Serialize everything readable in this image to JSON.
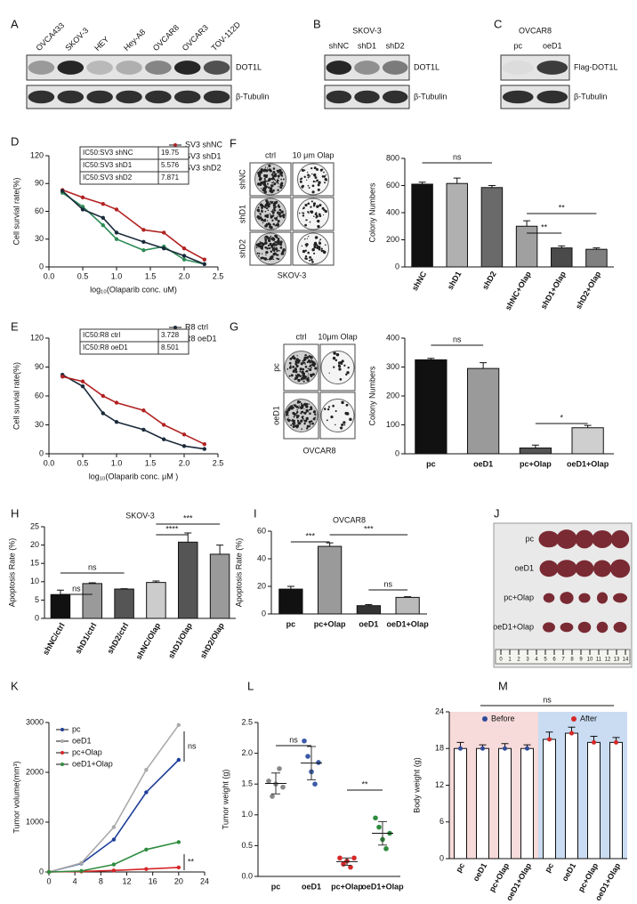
{
  "blots": [
    {
      "panel": "A",
      "lanes": [
        "OVCA433",
        "SKOV-3",
        "HEY",
        "Hey-A8",
        "OVCAR8",
        "OVCAR3",
        "TOV-112D"
      ],
      "bands": [
        "DOT1L",
        "β-Tubulin"
      ]
    },
    {
      "panel": "B",
      "title": "SKOV-3",
      "lanes": [
        "shNC",
        "shD1",
        "shD2"
      ],
      "bands": [
        "DOT1L",
        "β-Tubulin"
      ]
    },
    {
      "panel": "C",
      "title": "OVCAR8",
      "lanes": [
        "pc",
        "oeD1"
      ],
      "bands": [
        "Flag-DOT1L",
        "β-Tubulin"
      ]
    }
  ],
  "colony_images": [
    {
      "panel": "F",
      "columns": [
        "ctrl",
        "10 μm Olap"
      ],
      "rows": [
        "shNC",
        "shD1",
        "shD2"
      ],
      "caption": "SKOV-3"
    },
    {
      "panel": "G",
      "columns": [
        "ctrl",
        "10μm Olap"
      ],
      "rows": [
        "pc",
        "oeD1"
      ],
      "caption": "OVCAR8"
    }
  ],
  "tumor_photo": {
    "panel": "J",
    "rows": [
      "pc",
      "oeD1",
      "pc+Olap",
      "oeD1+Olap"
    ],
    "ruler": [
      0,
      1,
      2,
      3,
      4,
      5,
      6,
      7,
      8,
      9,
      10,
      11,
      12,
      13,
      14
    ]
  },
  "chart_data": [
    {
      "panel": "D",
      "type": "line",
      "y_label": "Cell survial rate(%)",
      "x_label": "log₁₀(Olaparib conc. uM)",
      "x": [
        0.2,
        0.5,
        0.8,
        1.0,
        1.4,
        1.7,
        2.0,
        2.3
      ],
      "xlim": [
        0,
        2.5
      ],
      "xticks": [
        {
          "value": 0,
          "label": "0.0"
        },
        {
          "value": 0.5,
          "label": "0.5"
        },
        {
          "value": 1,
          "label": "1.0"
        },
        {
          "value": 1.5,
          "label": "1.5"
        },
        {
          "value": 2,
          "label": "2.0"
        },
        {
          "value": 2.5,
          "label": "2.5"
        }
      ],
      "ylim": [
        0,
        120
      ],
      "yticks": [
        0,
        30,
        60,
        90,
        120
      ],
      "legend": "right",
      "ic50_table": [
        [
          "IC50:SV3 shNC",
          19.75
        ],
        [
          "IC50:SV3 shD1",
          5.576
        ],
        [
          "IC50:SV3 shD2",
          7.871
        ]
      ],
      "series": [
        {
          "name": "SV3 shNC",
          "color": "#b22222",
          "values": [
            83,
            75,
            68,
            62,
            40,
            37,
            20,
            8
          ]
        },
        {
          "name": "SV3 shD1",
          "color": "#2e8b57",
          "values": [
            80,
            65,
            45,
            30,
            18,
            22,
            8,
            3
          ]
        },
        {
          "name": "SV3 shD2",
          "color": "#1a2a3a",
          "values": [
            82,
            62,
            53,
            37,
            27,
            20,
            12,
            3
          ]
        }
      ]
    },
    {
      "type": "bar",
      "y_label": "Colony Numbers",
      "categories": [
        "shNC",
        "shD1",
        "shD2",
        "shNC+Olap",
        "shD1+Olap",
        "shD2+Olap"
      ],
      "values": [
        610,
        615,
        585,
        300,
        140,
        130
      ],
      "errors": [
        15,
        40,
        15,
        40,
        15,
        10
      ],
      "colors": [
        "#111111",
        "#b0b0b0",
        "#6a6a6a",
        "#a0a0a0",
        "#4a4a4a",
        "#808080"
      ],
      "ylim": [
        0,
        800
      ],
      "yticks": [
        0,
        200,
        400,
        600,
        800
      ],
      "annotations": [
        "ns",
        "**",
        "**"
      ]
    },
    {
      "panel": "E",
      "type": "line",
      "y_label": "Cell survial rate(%)",
      "x_label": "log₁₀(Olaparib conc. μM )",
      "x": [
        0.2,
        0.5,
        0.8,
        1.0,
        1.4,
        1.7,
        2.0,
        2.3
      ],
      "xlim": [
        0,
        2.5
      ],
      "xticks": [
        {
          "value": 0,
          "label": "0.0"
        },
        {
          "value": 0.5,
          "label": "0.5"
        },
        {
          "value": 1,
          "label": "1.0"
        },
        {
          "value": 1.5,
          "label": "1.5"
        },
        {
          "value": 2,
          "label": "2.0"
        },
        {
          "value": 2.5,
          "label": "2.5"
        }
      ],
      "ylim": [
        0,
        120
      ],
      "yticks": [
        0,
        30,
        60,
        90,
        120
      ],
      "legend": "right",
      "ic50_table": [
        [
          "IC50:R8 ctrl",
          3.728
        ],
        [
          "IC50:R8 oeD1",
          8.501
        ]
      ],
      "series": [
        {
          "name": "R8 ctrl",
          "color": "#1a2a3a",
          "values": [
            82,
            70,
            42,
            33,
            25,
            15,
            8,
            5
          ]
        },
        {
          "name": "R8 oeD1",
          "color": "#b22222",
          "values": [
            80,
            75,
            60,
            53,
            45,
            30,
            20,
            10
          ]
        }
      ]
    },
    {
      "type": "bar",
      "y_label": "Colony Numbers",
      "categories": [
        "pc",
        "oeD1",
        "pc+Olap",
        "oeD1+Olap"
      ],
      "values": [
        325,
        295,
        20,
        90
      ],
      "errors": [
        5,
        20,
        10,
        8
      ],
      "colors": [
        "#111111",
        "#9a9a9a",
        "#555555",
        "#cfcfcf"
      ],
      "ylim": [
        0,
        400
      ],
      "yticks": [
        0,
        100,
        200,
        300,
        400
      ],
      "annotations": [
        "ns",
        "*"
      ]
    },
    {
      "panel": "H",
      "type": "bar",
      "title": "SKOV-3",
      "y_label": "Apoptosis Rate (%)",
      "categories": [
        "shNC/ctrl",
        "shD1/ctrl",
        "shD2/ctrl",
        "shNC/Olap",
        "shD1/Olap",
        "shD2/Olap"
      ],
      "values": [
        6.5,
        9.5,
        8,
        9.8,
        20.8,
        17.5
      ],
      "errors": [
        1.2,
        0.2,
        0.1,
        0.4,
        2.5,
        2.5
      ],
      "colors": [
        "#111111",
        "#9a9a9a",
        "#555555",
        "#cccccc",
        "#555555",
        "#9a9a9a"
      ],
      "ylim": [
        0,
        25
      ],
      "yticks": [
        0,
        5,
        10,
        15,
        20,
        25
      ],
      "annotations": [
        "ns",
        "ns",
        "****",
        "***"
      ]
    },
    {
      "panel": "I",
      "type": "bar",
      "title": "OVCAR8",
      "y_label": "Apoptosis Rate (%)",
      "categories": [
        "pc",
        "pc+Olap",
        "oeD1",
        "oeD1+Olap"
      ],
      "values": [
        18,
        49,
        6,
        12
      ],
      "errors": [
        2,
        2.5,
        0.8,
        0.5
      ],
      "colors": [
        "#111111",
        "#9a9a9a",
        "#333333",
        "#bbbbbb"
      ],
      "ylim": [
        0,
        60
      ],
      "yticks": [
        0,
        20,
        40,
        60
      ],
      "annotations": [
        "***",
        "***",
        "ns"
      ]
    },
    {
      "panel": "K",
      "type": "line",
      "y_label": "Tumor volume(mm³)",
      "x": [
        0,
        5,
        10,
        15,
        20
      ],
      "xlim": [
        0,
        24
      ],
      "xticks": [
        0,
        4,
        8,
        12,
        16,
        20,
        24
      ],
      "ylim": [
        0,
        3000
      ],
      "yticks": [
        0,
        1000,
        2000,
        3000
      ],
      "legend": "upper left",
      "annotations": [
        "ns",
        "**"
      ],
      "series": [
        {
          "name": "pc",
          "color": "#1f3f99",
          "values": [
            0,
            170,
            650,
            1600,
            2250
          ]
        },
        {
          "name": "oeD1",
          "color": "#aaaaaa",
          "values": [
            0,
            180,
            900,
            2050,
            2950
          ]
        },
        {
          "name": "pc+Olap",
          "color": "#d62728",
          "values": [
            0,
            10,
            30,
            60,
            90
          ]
        },
        {
          "name": "oeD1+Olap",
          "color": "#2e8b3e",
          "values": [
            0,
            20,
            150,
            450,
            600
          ]
        }
      ]
    },
    {
      "panel": "L",
      "type": "dot",
      "y_label": "Tumor weight (g)",
      "categories": [
        "pc",
        "oeD1",
        "pc+Olap",
        "oeD1+Olap"
      ],
      "points": [
        [
          1.55,
          1.3,
          1.5,
          1.75,
          1.45
        ],
        [
          2.2,
          1.95,
          1.7,
          1.5,
          1.85
        ],
        [
          0.3,
          0.2,
          0.25,
          0.15,
          0.3
        ],
        [
          0.95,
          0.8,
          0.6,
          0.45,
          0.7
        ]
      ],
      "means": [
        1.51,
        1.84,
        0.24,
        0.7
      ],
      "sds": [
        0.17,
        0.27,
        0.06,
        0.19
      ],
      "colors": [
        "#888888",
        "#3a5aa8",
        "#d62728",
        "#2e8b3e"
      ],
      "ylim": [
        0,
        2.5
      ],
      "yticks": [
        {
          "value": 0,
          "label": "0.0"
        },
        {
          "value": 0.5,
          "label": "0.5"
        },
        {
          "value": 1,
          "label": "1.0"
        },
        {
          "value": 1.5,
          "label": "1.5"
        },
        {
          "value": 2,
          "label": "2.0"
        },
        {
          "value": 2.5,
          "label": "2.5"
        }
      ],
      "annotations": [
        "ns",
        "**"
      ]
    },
    {
      "panel": "M",
      "type": "grouped_bar",
      "y_label": "Body weight (g)",
      "categories": [
        "pc",
        "oeD1",
        "pc+Olap",
        "oeD1+Olap"
      ],
      "series": [
        {
          "name": "Before",
          "color": "#2f4a9a",
          "background": "#f7dada",
          "values": [
            18,
            18,
            18,
            18
          ],
          "errors": [
            1,
            0.6,
            0.8,
            0.6
          ]
        },
        {
          "name": "After",
          "color": "#d62728",
          "background": "#c9dcf2",
          "values": [
            19.5,
            20.5,
            19,
            19
          ],
          "errors": [
            1.2,
            1,
            1,
            0.8
          ]
        }
      ],
      "ylim": [
        0,
        24
      ],
      "yticks": [
        0,
        6,
        12,
        18,
        24
      ],
      "annotations": [
        "ns"
      ]
    }
  ]
}
